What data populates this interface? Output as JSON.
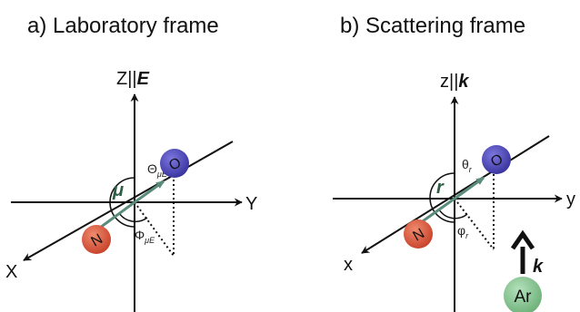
{
  "panel_a": {
    "title": "a)  Laboratory frame",
    "z_label_prefix": "Z||",
    "z_label_bold": "E",
    "x_label": "X",
    "y_label": "Y",
    "vector_label": "μ",
    "theta_label": "Θ",
    "theta_sub": "μE",
    "phi_label": "Φ",
    "phi_sub": "μE",
    "atom_top": "O",
    "atom_bottom": "N"
  },
  "panel_b": {
    "title": "b)  Scattering frame",
    "z_label_prefix": "z||",
    "z_label_bold": "k",
    "x_label": "x",
    "y_label": "y",
    "vector_label": "r",
    "theta_label": "θ",
    "theta_sub": "r",
    "phi_label": "φ",
    "phi_sub": "r",
    "atom_top": "O",
    "atom_bottom": "N",
    "k_label": "k",
    "argon_label": "Ar"
  },
  "colors": {
    "oxygen": "#4b45b5",
    "nitrogen": "#d8553e",
    "vector": "#5a8c7a",
    "argon": "#8fc99a"
  }
}
